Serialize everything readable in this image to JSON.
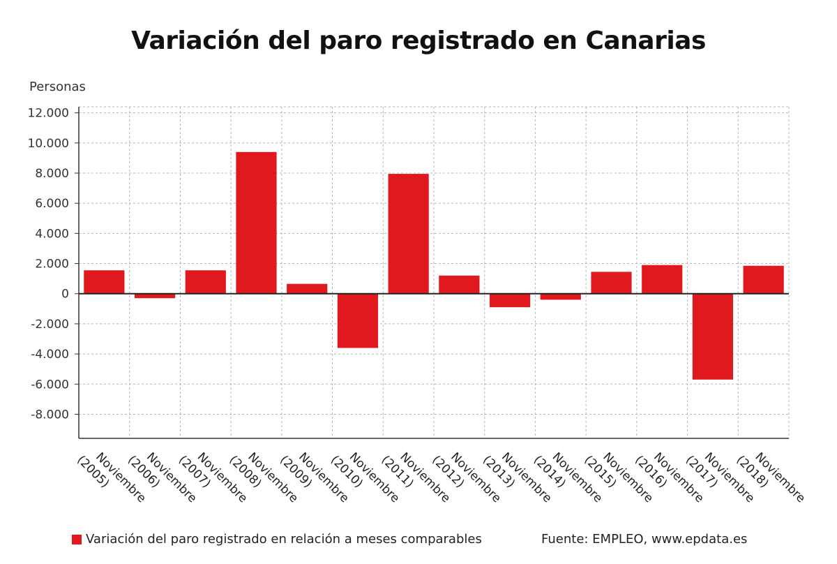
{
  "title": "Variación del paro registrado en Canarias",
  "legend": {
    "label": "Variación del paro registrado en relación a meses comparables",
    "color": "#e0191f"
  },
  "source": "Fuente: EMPLEO, www.epdata.es",
  "chart_data": {
    "type": "bar",
    "title": "Variación del paro registrado en Canarias",
    "ylabel": "Personas",
    "xlabel": "",
    "ylim": [
      -9600,
      12400
    ],
    "yticks": [
      12000,
      10000,
      8000,
      6000,
      4000,
      2000,
      0,
      -2000,
      -4000,
      -6000,
      -8000
    ],
    "ytick_labels": [
      "12.000",
      "10.000",
      "8.000",
      "6.000",
      "4.000",
      "2.000",
      "0",
      "-2.000",
      "-4.000",
      "-6.000",
      "-8.000"
    ],
    "grid": true,
    "legend_position": "bottom-left",
    "categories": [
      [
        "Noviembre",
        "(2005)"
      ],
      [
        "Noviembre",
        "(2006)"
      ],
      [
        "Noviembre",
        "(2007)"
      ],
      [
        "Noviembre",
        "(2008)"
      ],
      [
        "Noviembre",
        "(2009)"
      ],
      [
        "Noviembre",
        "(2010)"
      ],
      [
        "Noviembre",
        "(2011)"
      ],
      [
        "Noviembre",
        "(2012)"
      ],
      [
        "Noviembre",
        "(2013)"
      ],
      [
        "Noviembre",
        "(2014)"
      ],
      [
        "Noviembre",
        "(2015)"
      ],
      [
        "Noviembre",
        "(2016)"
      ],
      [
        "Noviembre",
        "(2017)"
      ],
      [
        "Noviembre",
        "(2018)"
      ]
    ],
    "series": [
      {
        "name": "Variación del paro registrado en relación a meses comparables",
        "color": "#e0191f",
        "values": [
          1550,
          -300,
          1550,
          9400,
          650,
          -3600,
          7950,
          1200,
          -900,
          -400,
          1450,
          1900,
          -5700,
          1850
        ]
      }
    ]
  }
}
